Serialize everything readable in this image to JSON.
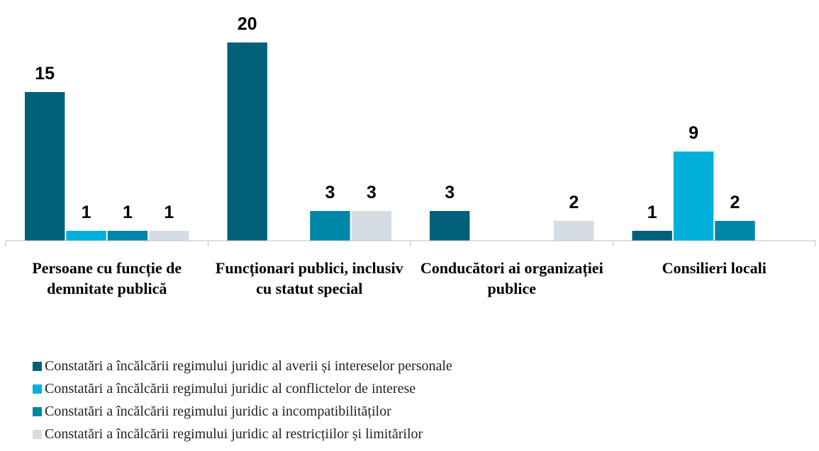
{
  "chart_data": {
    "type": "bar",
    "categories": [
      "Persoane cu funcție de demnitate publică",
      "Funcționari publici, inclusiv cu statut special",
      "Conducători ai organizației publice",
      "Consilieri locali"
    ],
    "series": [
      {
        "name": "Constatări a încălcării regimului juridic al averii și intereselor personale",
        "color": "#00607a",
        "values": [
          15,
          20,
          3,
          1
        ]
      },
      {
        "name": "Constatări a încălcării regimului juridic al conflictelor de interese",
        "color": "#00b0da",
        "values": [
          1,
          null,
          null,
          9
        ]
      },
      {
        "name": "Constatări a încălcării regimului juridic a incompatibilităților",
        "color": "#0086a8",
        "values": [
          1,
          3,
          null,
          2
        ]
      },
      {
        "name": "Constatări a încălcării regimului juridic al restricțiilor și limitărilor",
        "color": "#d6dce4",
        "values": [
          1,
          3,
          2,
          null
        ]
      }
    ],
    "ylim": [
      0,
      22
    ],
    "legend": "bottom"
  }
}
